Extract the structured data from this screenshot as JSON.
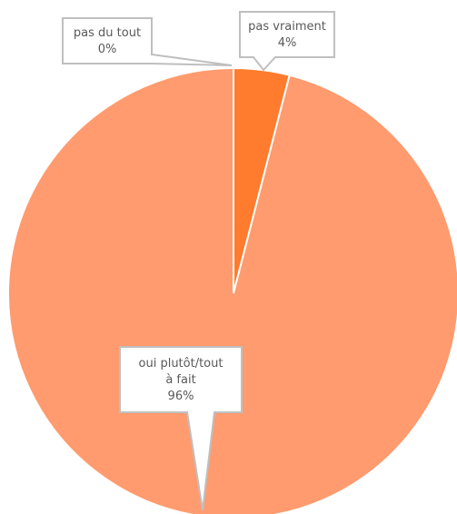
{
  "chart_data": {
    "type": "pie",
    "title": "",
    "slices": [
      {
        "label": "pas du tout",
        "value_label": "0%",
        "value": 0,
        "color": "#ED7D31"
      },
      {
        "label": "pas vraiment",
        "value_label": "4%",
        "value": 4,
        "color": "#FF7B2E"
      },
      {
        "label": "oui plutôt/tout à fait",
        "value_label": "96%",
        "value": 96,
        "color": "#FF9B6E"
      }
    ],
    "label_lines": {
      "pas du tout": [
        "pas du tout",
        "0%"
      ],
      "pas vraiment": [
        "pas vraiment",
        "4%"
      ],
      "oui plutôt/tout à fait": [
        "oui plutôt/tout",
        "à fait",
        "96%"
      ]
    },
    "legend": "none",
    "data_labels": "callouts"
  }
}
